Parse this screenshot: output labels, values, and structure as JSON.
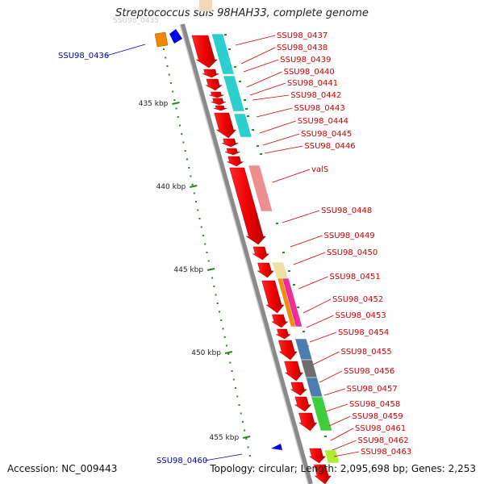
{
  "title": "Streptococcus suis 98HAH33, complete genome",
  "accession": "Accession: NC_009443",
  "topology": "Topology: circular; Length: 2,095,698 bp; Genes: 2,253",
  "kbp_ticks": [
    {
      "label": "435 kbp"
    },
    {
      "label": "440 kbp"
    },
    {
      "label": "445 kbp"
    },
    {
      "label": "450 kbp"
    },
    {
      "label": "455 kbp"
    }
  ],
  "left_genes": [
    {
      "label": "SSU98_0436",
      "color": "#0000aa"
    },
    {
      "label": "SSU98_0460",
      "color": "#0000aa"
    }
  ],
  "right_genes": [
    {
      "label": "SSU98_0437"
    },
    {
      "label": "SSU98_0438"
    },
    {
      "label": "SSU98_0439"
    },
    {
      "label": "SSU98_0440"
    },
    {
      "label": "SSU98_0441"
    },
    {
      "label": "SSU98_0442"
    },
    {
      "label": "SSU98_0443"
    },
    {
      "label": "SSU98_0444"
    },
    {
      "label": "SSU98_0445"
    },
    {
      "label": "SSU98_0446"
    },
    {
      "label": "valS"
    },
    {
      "label": "SSU98_0448"
    },
    {
      "label": "SSU98_0449"
    },
    {
      "label": "SSU98_0450"
    },
    {
      "label": "SSU98_0451"
    },
    {
      "label": "SSU98_0452"
    },
    {
      "label": "SSU98_0453"
    },
    {
      "label": "SSU98_0454"
    },
    {
      "label": "SSU98_0455"
    },
    {
      "label": "SSU98_0456"
    },
    {
      "label": "SSU98_0457"
    },
    {
      "label": "SSU98_0458"
    },
    {
      "label": "SSU98_0459"
    },
    {
      "label": "SSU98_0461"
    },
    {
      "label": "SSU98_0462"
    },
    {
      "label": "SSU98_0463"
    }
  ],
  "colors": {
    "backbone": "#888888",
    "gene_forward": "#ee0000",
    "label_red": "#cc0000",
    "label_blue": "#0000aa",
    "tick_green": "#228822",
    "cyan": "#22cccc",
    "salmon": "#ee8888",
    "khaki": "#eee0a0",
    "orange": "#ee8800",
    "magenta": "#ee2299",
    "steelblue": "#4477aa",
    "gray": "#666666",
    "green": "#33cc33",
    "lime": "#aaee22"
  }
}
